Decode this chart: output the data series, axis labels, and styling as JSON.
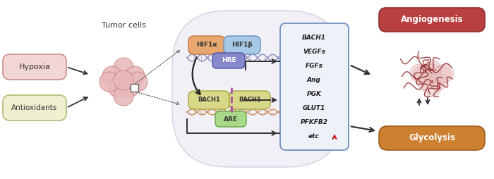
{
  "hypoxia_box_face": "#f2d5d5",
  "hypoxia_box_edge": "#c8908a",
  "antioxidants_box_face": "#f0f0d0",
  "antioxidants_box_edge": "#b8b878",
  "cell_face": "#e8b8ba",
  "cell_edge": "#cc8888",
  "nucleus_face": "#eeeef5",
  "nucleus_edge": "#ccccdd",
  "hif1a_face": "#e8a870",
  "hif1a_edge": "#c07840",
  "hif1b_face": "#a8c8e8",
  "hif1b_edge": "#6890b8",
  "hre_face": "#8888cc",
  "hre_edge": "#5555aa",
  "bach1_face": "#d8d888",
  "bach1_edge": "#a8a840",
  "are_face": "#a8d888",
  "are_edge": "#68a848",
  "gene_box_face": "#eef2f8",
  "gene_box_edge": "#7090c0",
  "angio_box_face": "#b84040",
  "angio_box_edge": "#903030",
  "glyco_box_face": "#cc8030",
  "glyco_box_edge": "#a06020",
  "arrow_color": "#333333",
  "dashed_color": "#aa44aa",
  "vessel_color": "#993333",
  "tumor_bg_face": "#f0d0d0",
  "up_arrow_color": "#cc2222",
  "gene_list": [
    "BACH1",
    "VEGFs",
    "FGFs",
    "Ang",
    "PGK",
    "GLUT1",
    "PFKFB2",
    "etc"
  ],
  "dna_color_upper": "#8888bb",
  "dna_color_lower": "#cc8855"
}
